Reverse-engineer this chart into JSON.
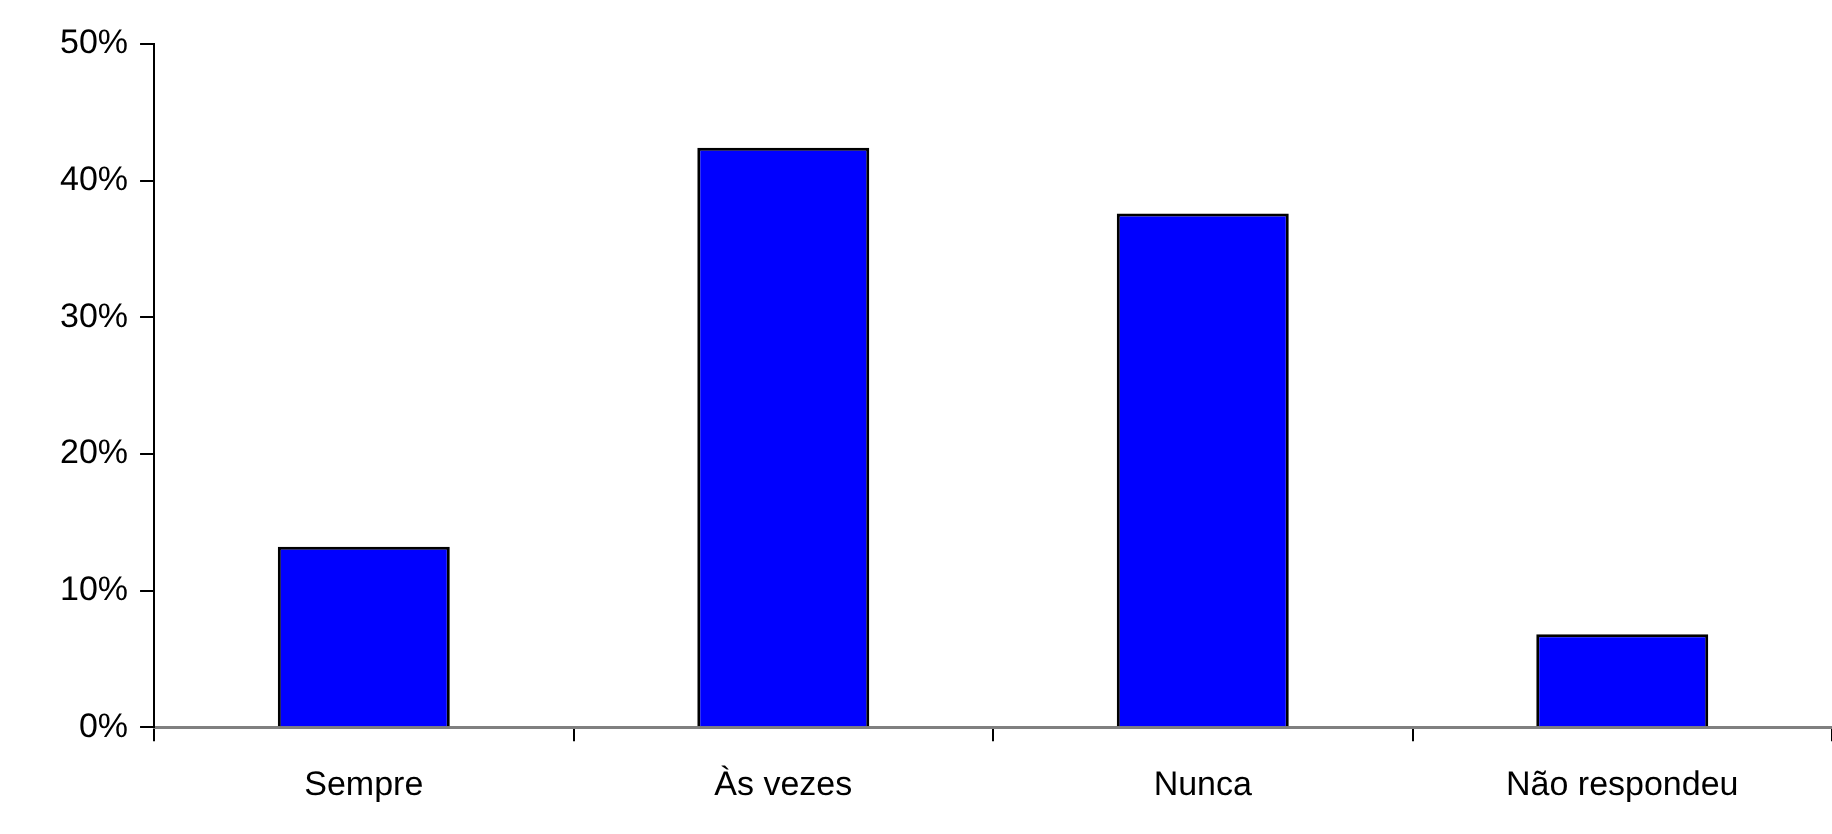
{
  "chart_data": {
    "type": "bar",
    "categories": [
      "Sempre",
      "Às vezes",
      "Nunca",
      "Não respondeu"
    ],
    "values": [
      13.2,
      42.4,
      37.6,
      6.8
    ],
    "color": "#0000ff",
    "ylim": [
      0,
      50
    ],
    "yticks": [
      {
        "value": 0,
        "label": "0%"
      },
      {
        "value": 10,
        "label": "10%"
      },
      {
        "value": 20,
        "label": "20%"
      },
      {
        "value": 30,
        "label": "30%"
      },
      {
        "value": 40,
        "label": "40%"
      },
      {
        "value": 50,
        "label": "50%"
      }
    ],
    "grid": false,
    "legend": false
  }
}
